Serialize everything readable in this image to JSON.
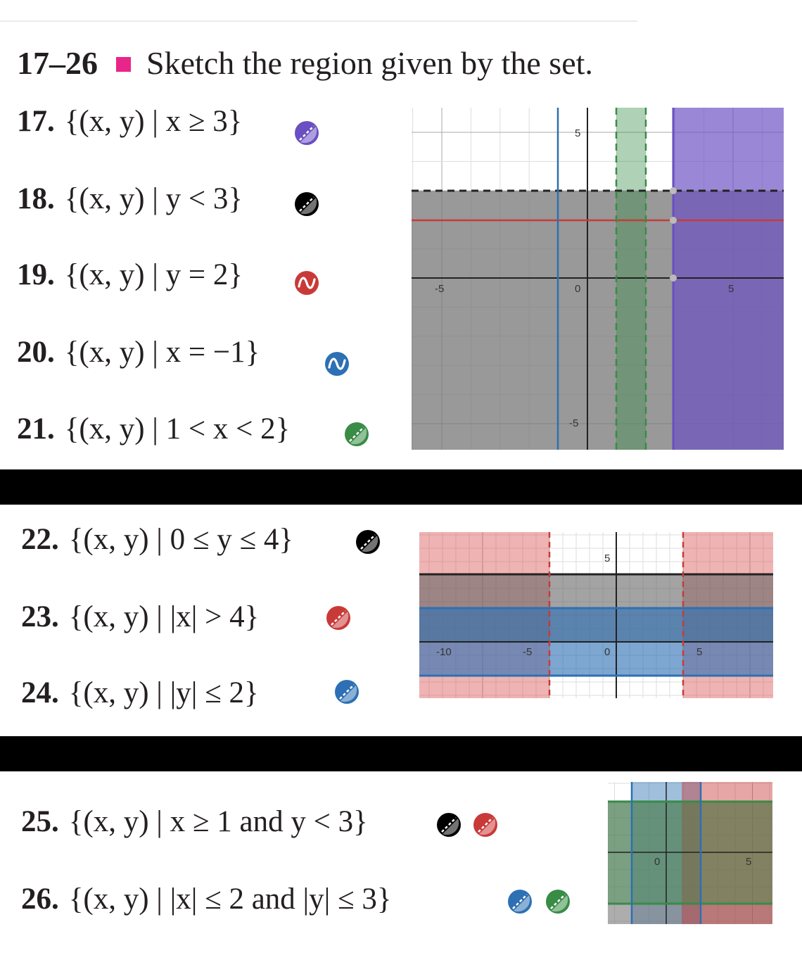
{
  "heading": {
    "number": "17–26",
    "text": "Sketch the region given by the set.",
    "square_color": "#e8268a"
  },
  "problems": [
    {
      "n": "17.",
      "set": "{(x, y) | x ≥ 3}"
    },
    {
      "n": "18.",
      "set": "{(x, y) | y < 3}"
    },
    {
      "n": "19.",
      "set": "{(x, y) | y = 2}"
    },
    {
      "n": "20.",
      "set": "{(x, y) | x = −1}"
    },
    {
      "n": "21.",
      "set": "{(x, y) | 1 < x < 2}"
    },
    {
      "n": "22.",
      "set": "{(x, y) | 0 ≤ y ≤ 4}"
    },
    {
      "n": "23.",
      "set": "{(x, y) | |x| > 4}"
    },
    {
      "n": "24.",
      "set": "{(x, y) | |y| ≤ 2}"
    },
    {
      "n": "25.",
      "set": "{(x, y) | x ≥ 1 and y < 3}"
    },
    {
      "n": "26.",
      "set": "{(x, y) | |x| ≤ 2 and |y| ≤ 3}"
    }
  ],
  "icons": [
    {
      "name": "purple-inequality-icon",
      "type": "inequality",
      "color": "#6a4fc2"
    },
    {
      "name": "black-inequality-icon",
      "type": "inequality",
      "color": "#000000"
    },
    {
      "name": "red-line-icon",
      "type": "line",
      "color": "#c83a38"
    },
    {
      "name": "blue-line-icon",
      "type": "line",
      "color": "#2d70b3"
    },
    {
      "name": "green-inequality-icon",
      "type": "inequality",
      "color": "#388c46"
    },
    {
      "name": "black-inequality-icon",
      "type": "inequality",
      "color": "#000000"
    },
    {
      "name": "red-inequality-icon",
      "type": "inequality",
      "color": "#c83a38"
    },
    {
      "name": "blue-inequality-icon",
      "type": "inequality",
      "color": "#2d70b3"
    },
    {
      "name": "black-inequality-icon",
      "type": "inequality",
      "color": "#000000"
    },
    {
      "name": "red-inequality-icon",
      "type": "inequality",
      "color": "#c83a38"
    },
    {
      "name": "blue-inequality-icon",
      "type": "inequality",
      "color": "#2d70b3"
    },
    {
      "name": "green-inequality-icon",
      "type": "inequality",
      "color": "#388c46"
    }
  ],
  "graphs": [
    {
      "ticks": [
        "-5",
        "0",
        "5",
        "5",
        "-5"
      ]
    },
    {
      "ticks": [
        "-10",
        "-5",
        "0",
        "5",
        "5"
      ]
    },
    {
      "ticks": [
        "0",
        "5"
      ]
    }
  ]
}
